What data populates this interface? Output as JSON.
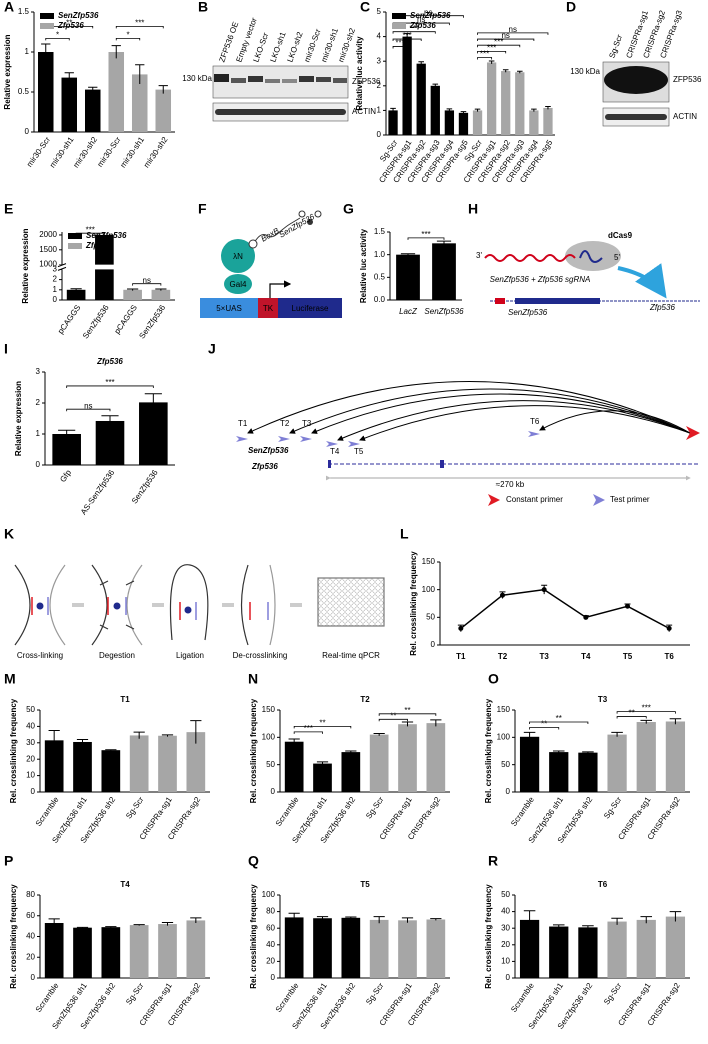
{
  "panels": [
    "A",
    "B",
    "C",
    "D",
    "E",
    "F",
    "G",
    "H",
    "I",
    "J",
    "K",
    "L",
    "M",
    "N",
    "O",
    "P",
    "Q",
    "R"
  ],
  "blot_b": {
    "lanes": [
      "ZFP536 OE",
      "Empty vector",
      "LKO-Scr",
      "LKO-sh1",
      "LKO-sh2",
      "mir30-Scr",
      "mir30-sh1",
      "mir30-sh2"
    ],
    "marker": "130 kDa",
    "bands": [
      "ZFP536",
      "ACTIN"
    ]
  },
  "blot_d": {
    "lanes": [
      "Sg-Scr",
      "CRISPRa-sg1",
      "CRISPRa-sg2",
      "CRISPRa-sg3"
    ],
    "marker": "130 kDa",
    "bands": [
      "ZFP536",
      "ACTIN"
    ]
  },
  "diagram_f": {
    "protein": "λN",
    "rna_tag": "BoxB",
    "rna": "SenZfp536",
    "binder": "Gal4",
    "elements": [
      "5×UAS",
      "TK",
      "Luciferase"
    ]
  },
  "diagram_h": {
    "ends": [
      "3'",
      "5'"
    ],
    "protein": "dCas9",
    "guide": "SenZfp536 + Zfp536 sgRNA",
    "genes": [
      "SenZfp536",
      "Zfp536"
    ]
  },
  "diagram_j": {
    "primers": [
      "T1",
      "T2",
      "T3",
      "T4",
      "T5",
      "T6"
    ],
    "genes": [
      "SenZfp536",
      "Zfp536"
    ],
    "distance": "≈270 kb",
    "legend": [
      "Constant primer",
      "Test primer"
    ]
  },
  "diagram_k": {
    "steps": [
      "Cross-linking",
      "Degestion",
      "Ligation",
      "De-crosslinking",
      "Real-time qPCR"
    ]
  },
  "chart_data": [
    {
      "type": "bar",
      "y_label": "Relative expression",
      "categories": [
        "mir30-Scr",
        "mir30-sh1",
        "mir30-sh2",
        "mir30-Scr",
        "mir30-sh1",
        "mir30-sh2"
      ],
      "series": [
        {
          "name": "SenZfp536",
          "color": "#000000",
          "values": [
            1.0,
            0.68,
            0.53,
            null,
            null,
            null
          ],
          "errors": [
            0.1,
            0.06,
            0.03,
            null,
            null,
            null
          ]
        },
        {
          "name": "Zfp536",
          "color": "#a6a6a6",
          "values": [
            null,
            null,
            null,
            1.0,
            0.72,
            0.53
          ],
          "errors": [
            null,
            null,
            null,
            0.08,
            0.12,
            0.05
          ]
        }
      ],
      "ylim": [
        0,
        1.5
      ],
      "yticks": [
        0,
        0.5,
        1,
        1.5
      ],
      "legend": "upper left",
      "annotations": [
        "**",
        "*",
        "***",
        "*"
      ]
    },
    {
      "type": "bar",
      "y_label": "Relative luc activity",
      "categories": [
        "Sg-Scr",
        "CRISPRa-sg1",
        "CRISPRa-sg2",
        "CRISPRa-sg3",
        "CRISPRa-sg4",
        "CRISPRa-sg5",
        "Sg-Scr",
        "CRISPRa-sg1",
        "CRISPRa-sg2",
        "CRISPRa-sg3",
        "CRISPRa-sg4",
        "CRISPRa-sg5"
      ],
      "series": [
        {
          "name": "SenZfp536",
          "color": "#000000",
          "values": [
            1.0,
            4.0,
            2.9,
            2.0,
            1.0,
            0.9,
            null,
            null,
            null,
            null,
            null,
            null
          ],
          "errors": [
            0.08,
            0.12,
            0.08,
            0.07,
            0.06,
            0.05,
            null,
            null,
            null,
            null,
            null,
            null
          ]
        },
        {
          "name": "Zfp536",
          "color": "#a6a6a6",
          "values": [
            null,
            null,
            null,
            null,
            null,
            null,
            1.0,
            2.95,
            2.6,
            2.55,
            1.0,
            1.1
          ],
          "errors": [
            null,
            null,
            null,
            null,
            null,
            null,
            0.05,
            0.06,
            0.05,
            0.04,
            0.05,
            0.06
          ]
        }
      ],
      "ylim": [
        0,
        5
      ],
      "yticks": [
        0,
        1,
        2,
        3,
        4,
        5
      ],
      "legend": "upper left",
      "annotations": [
        "***",
        "***",
        "***",
        "ns",
        "ns",
        "***",
        "***",
        "***",
        "ns",
        "ns"
      ]
    },
    {
      "type": "bar",
      "y_label": "Relative expression",
      "categories": [
        "pCAGGS",
        "SenZfp536",
        "pCAGGS",
        "SenZfp536"
      ],
      "series": [
        {
          "name": "SenZfp536",
          "color": "#000000",
          "values": [
            1.0,
            2000,
            null,
            null
          ],
          "errors": [
            0.1,
            null,
            null,
            null
          ]
        },
        {
          "name": "Zfp536",
          "color": "#a6a6a6",
          "values": [
            null,
            null,
            1.0,
            1.0
          ],
          "errors": [
            null,
            null,
            0.08,
            0.08
          ]
        }
      ],
      "ylim": [
        0,
        2100
      ],
      "ybreak": [
        3,
        1000
      ],
      "yticks": [
        0,
        1,
        2,
        3,
        1000,
        1500,
        2000
      ],
      "legend": "upper left",
      "annotations": [
        "***",
        "ns"
      ]
    },
    {
      "type": "bar",
      "y_label": "Relative luc activity",
      "categories": [
        "LacZ",
        "SenZfp536"
      ],
      "values": [
        1.0,
        1.25
      ],
      "errors": [
        0.02,
        0.05
      ],
      "color": "#000000",
      "ylim": [
        0,
        1.5
      ],
      "yticks": [
        {
          "value": 0,
          "label": "0.0"
        },
        {
          "value": 0.5,
          "label": "0.5"
        },
        {
          "value": 1,
          "label": "1.0"
        },
        {
          "value": 1.5,
          "label": "1.5"
        }
      ],
      "annotations": [
        "***"
      ]
    },
    {
      "type": "bar",
      "title": "Zfp536",
      "y_label": "Relative expression",
      "categories": [
        "Gfp",
        "AS-SenZfp536",
        "SenZfp536"
      ],
      "values": [
        1.0,
        1.42,
        2.02
      ],
      "errors": [
        0.12,
        0.17,
        0.28
      ],
      "color": "#000000",
      "ylim": [
        0,
        3
      ],
      "yticks": [
        0,
        1,
        2,
        3
      ],
      "annotations": [
        "ns",
        "***"
      ]
    },
    {
      "type": "line",
      "y_label": "Rel. crosslinking frequency",
      "categories": [
        "T1",
        "T2",
        "T3",
        "T4",
        "T5",
        "T6"
      ],
      "values": [
        30,
        90,
        100,
        50,
        70,
        30
      ],
      "errors": [
        6,
        6,
        8,
        3,
        4,
        6
      ],
      "color": "#000000",
      "ylim": [
        0,
        150
      ],
      "yticks": [
        0,
        50,
        100,
        150
      ]
    },
    {
      "type": "bar",
      "title": "T1",
      "y_label": "Rel. crosslinking frequency",
      "categories": [
        "Scramble",
        "SenZfp536 sh1",
        "SenZfp536 sh2",
        "Sg-Scr",
        "CRISPRa-sg1",
        "CRISPRa-sg2"
      ],
      "series": [
        {
          "color": "#000000",
          "values": [
            31.5,
            30.5,
            25.5,
            null,
            null,
            null
          ],
          "errors": [
            6,
            1.5,
            0.3,
            null,
            null,
            null
          ]
        },
        {
          "color": "#a6a6a6",
          "values": [
            null,
            null,
            null,
            34.5,
            34.3,
            36.5
          ],
          "errors": [
            null,
            null,
            null,
            2,
            0.5,
            7
          ]
        }
      ],
      "ylim": [
        0,
        50
      ],
      "yticks": [
        0,
        10,
        20,
        30,
        40,
        50
      ]
    },
    {
      "type": "bar",
      "title": "T2",
      "y_label": "Rel. crosslinking frequency",
      "categories": [
        "Scramble",
        "SenZfp536 sh1",
        "SenZfp536 sh2",
        "Sg-Scr",
        "CRISPRa-sg1",
        "CRISPRa-sg2"
      ],
      "series": [
        {
          "color": "#000000",
          "values": [
            92,
            52,
            73,
            null,
            null,
            null
          ],
          "errors": [
            5,
            3,
            2,
            null,
            null,
            null
          ]
        },
        {
          "color": "#a6a6a6",
          "values": [
            null,
            null,
            null,
            105,
            124,
            126
          ],
          "errors": [
            null,
            null,
            null,
            2,
            4,
            6
          ]
        }
      ],
      "ylim": [
        0,
        150
      ],
      "yticks": [
        0,
        50,
        100,
        150
      ],
      "annotations": [
        "***",
        "**",
        "**",
        "**"
      ]
    },
    {
      "type": "bar",
      "title": "T3",
      "y_label": "Rel. crosslinking frequency",
      "categories": [
        "Scramble",
        "SenZfp536 sh1",
        "SenZfp536 sh2",
        "Sg-Scr",
        "CRISPRa-sg1",
        "CRISPRa-sg2"
      ],
      "series": [
        {
          "color": "#000000",
          "values": [
            101,
            73,
            72,
            null,
            null,
            null
          ],
          "errors": [
            8,
            2,
            1.5,
            null,
            null,
            null
          ]
        },
        {
          "color": "#a6a6a6",
          "values": [
            null,
            null,
            null,
            105,
            128,
            129
          ],
          "errors": [
            null,
            null,
            null,
            4,
            3,
            5
          ]
        }
      ],
      "ylim": [
        0,
        150
      ],
      "yticks": [
        0,
        50,
        100,
        150
      ],
      "annotations": [
        "**",
        "**",
        "**",
        "***"
      ]
    },
    {
      "type": "bar",
      "title": "T4",
      "y_label": "Rel. crosslinking frequency",
      "categories": [
        "Scramble",
        "SenZfp536 sh1",
        "SenZfp536 sh2",
        "Sg-Scr",
        "CRISPRa-sg1",
        "CRISPRa-sg2"
      ],
      "series": [
        {
          "color": "#000000",
          "values": [
            53,
            48.5,
            49,
            null,
            null,
            null
          ],
          "errors": [
            4,
            0.3,
            0.5,
            null,
            null,
            null
          ]
        },
        {
          "color": "#a6a6a6",
          "values": [
            null,
            null,
            null,
            51,
            52,
            55.5
          ],
          "errors": [
            null,
            null,
            null,
            0.5,
            1.5,
            2.5
          ]
        }
      ],
      "ylim": [
        0,
        80
      ],
      "yticks": [
        0,
        20,
        40,
        60,
        80
      ]
    },
    {
      "type": "bar",
      "title": "T5",
      "y_label": "Rel. crosslinking frequency",
      "categories": [
        "Scramble",
        "SenZfp536 sh1",
        "SenZfp536 sh2",
        "Sg-Scr",
        "CRISPRa-sg1",
        "CRISPRa-sg2"
      ],
      "series": [
        {
          "color": "#000000",
          "values": [
            73,
            72,
            72.5,
            null,
            null,
            null
          ],
          "errors": [
            5,
            2,
            1,
            null,
            null,
            null
          ]
        },
        {
          "color": "#a6a6a6",
          "values": [
            null,
            null,
            null,
            70,
            69.5,
            70.5
          ],
          "errors": [
            null,
            null,
            null,
            4,
            3,
            1
          ]
        }
      ],
      "ylim": [
        0,
        100
      ],
      "yticks": [
        0,
        20,
        40,
        60,
        80,
        100
      ]
    },
    {
      "type": "bar",
      "title": "T6",
      "y_label": "Rel. crosslinking frequency",
      "categories": [
        "Scramble",
        "SenZfp536 sh1",
        "SenZfp536 sh2",
        "Sg-Scr",
        "CRISPRa-sg1",
        "CRISPRa-sg2"
      ],
      "series": [
        {
          "color": "#000000",
          "values": [
            35,
            31,
            30.5,
            null,
            null,
            null
          ],
          "errors": [
            5.5,
            1,
            1,
            null,
            null,
            null
          ]
        },
        {
          "color": "#a6a6a6",
          "values": [
            null,
            null,
            null,
            34,
            35,
            37
          ],
          "errors": [
            null,
            null,
            null,
            2,
            2,
            3
          ]
        }
      ],
      "ylim": [
        0,
        50
      ],
      "yticks": [
        0,
        10,
        20,
        30,
        40,
        50
      ]
    }
  ]
}
